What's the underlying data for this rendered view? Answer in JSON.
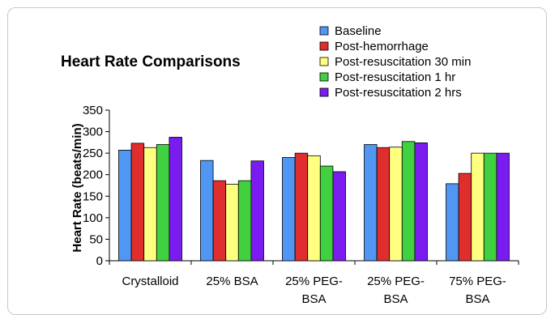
{
  "chart_data": {
    "type": "bar",
    "title": "Heart Rate Comparisons",
    "xlabel": "",
    "ylabel": "Heart Rate (beats/min)",
    "ylim": [
      0,
      350
    ],
    "yticks": [
      0,
      50,
      100,
      150,
      200,
      250,
      300,
      350
    ],
    "grid": false,
    "legend_position": "top-right",
    "categories": [
      [
        "Crystalloid"
      ],
      [
        "25% BSA"
      ],
      [
        "25% PEG-",
        "BSA"
      ],
      [
        "25% PEG-",
        "BSA"
      ],
      [
        "75% PEG-",
        "BSA"
      ]
    ],
    "series": [
      {
        "name": "Baseline",
        "color": "#4f97f2",
        "values": [
          257,
          233,
          240,
          270,
          179
        ]
      },
      {
        "name": "Post-hemorrhage",
        "color": "#e02d2d",
        "values": [
          273,
          186,
          250,
          263,
          203
        ]
      },
      {
        "name": "Post-resuscitation 30 min",
        "color": "#ffff80",
        "values": [
          263,
          178,
          244,
          264,
          250
        ]
      },
      {
        "name": "Post-resuscitation 1 hr",
        "color": "#40d040",
        "values": [
          270,
          186,
          220,
          277,
          250
        ]
      },
      {
        "name": "Post-resuscitation 2 hrs",
        "color": "#7a1cf0",
        "values": [
          287,
          232,
          207,
          274,
          250
        ]
      }
    ]
  }
}
